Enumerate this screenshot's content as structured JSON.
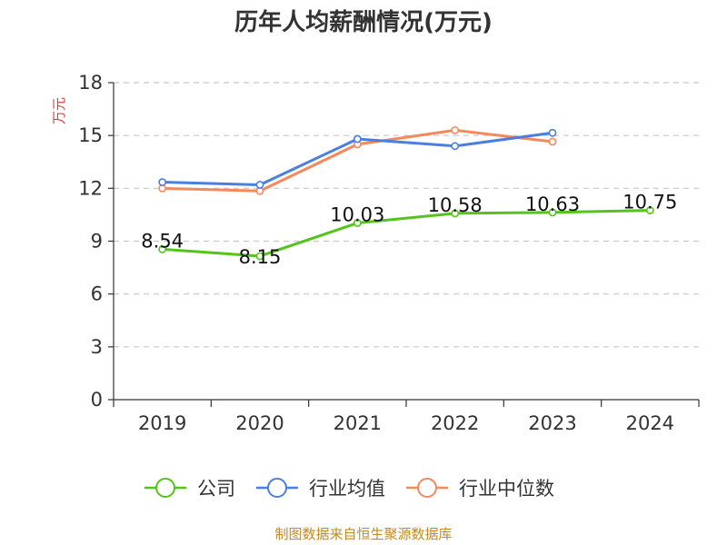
{
  "chart_data": {
    "type": "line",
    "title": "历年人均薪酬情况(万元)",
    "xlabel": "",
    "ylabel": "万元",
    "categories": [
      "2019",
      "2020",
      "2021",
      "2022",
      "2023",
      "2024"
    ],
    "ylim": [
      0,
      18
    ],
    "yticks": [
      0,
      3,
      6,
      9,
      12,
      15,
      18
    ],
    "grid": "horizontal dashed",
    "legend_position": "bottom",
    "series": [
      {
        "name": "公司",
        "color": "#52c41a",
        "values": [
          8.54,
          8.15,
          10.03,
          10.58,
          10.63,
          10.75
        ],
        "labels": [
          "8.54",
          "8.15",
          "10.03",
          "10.58",
          "10.63",
          "10.75"
        ]
      },
      {
        "name": "行业均值",
        "color": "#4a7fe0",
        "values": [
          12.35,
          12.2,
          14.8,
          14.4,
          15.15,
          null
        ]
      },
      {
        "name": "行业中位数",
        "color": "#f5895b",
        "values": [
          12.0,
          11.85,
          14.5,
          15.3,
          14.65,
          null
        ]
      }
    ],
    "source": "制图数据来自恒生聚源数据库"
  }
}
